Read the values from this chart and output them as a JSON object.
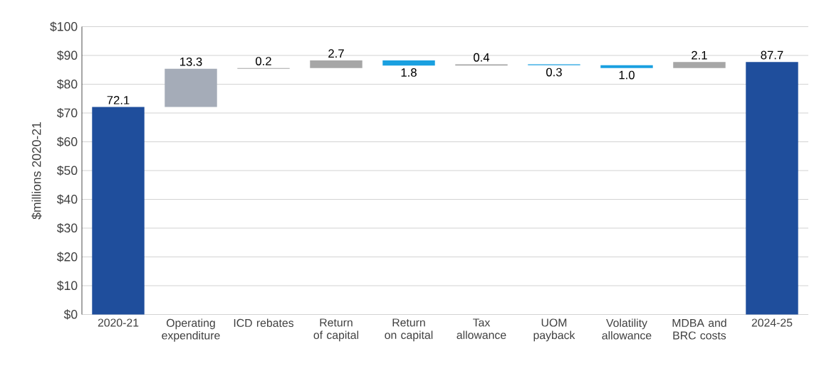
{
  "chart_data": {
    "type": "bar",
    "ylabel": "$millions 2020-21",
    "categories": [
      "2020-21",
      "Operating expenditure",
      "ICD rebates",
      "Return of capital",
      "Return on capital",
      "Tax allowance",
      "UOM payback",
      "Volatility allowance",
      "MDBA and BRC costs",
      "2024-25"
    ],
    "values": [
      72.1,
      13.3,
      0.2,
      2.7,
      -1.8,
      0.4,
      -0.3,
      -1.0,
      2.1,
      87.7
    ],
    "base": [
      0,
      72.1,
      85.4,
      85.6,
      88.3,
      86.5,
      86.9,
      86.6,
      85.6,
      0
    ],
    "value_labels": [
      "72.1",
      "13.3",
      "0.2",
      "2.7",
      "1.8",
      "0.4",
      "0.3",
      "1.0",
      "2.1",
      "87.7"
    ],
    "colors": [
      "#1f4e9c",
      "#a5acb8",
      "#a6a6a6",
      "#a6a6a6",
      "#1aa0e0",
      "#a6a6a6",
      "#1aa0e0",
      "#1aa0e0",
      "#a6a6a6",
      "#1f4e9c"
    ],
    "ylim": [
      0,
      100
    ],
    "yticks": [
      {
        "value": 0,
        "label": "$0"
      },
      {
        "value": 10,
        "label": "$10"
      },
      {
        "value": 20,
        "label": "$20"
      },
      {
        "value": 30,
        "label": "$30"
      },
      {
        "value": 40,
        "label": "$40"
      },
      {
        "value": 50,
        "label": "$50"
      },
      {
        "value": 60,
        "label": "$60"
      },
      {
        "value": 70,
        "label": "$70"
      },
      {
        "value": 80,
        "label": "$80"
      },
      {
        "value": 90,
        "label": "$90"
      },
      {
        "value": 100,
        "label": "$100"
      }
    ],
    "grid": "y"
  }
}
